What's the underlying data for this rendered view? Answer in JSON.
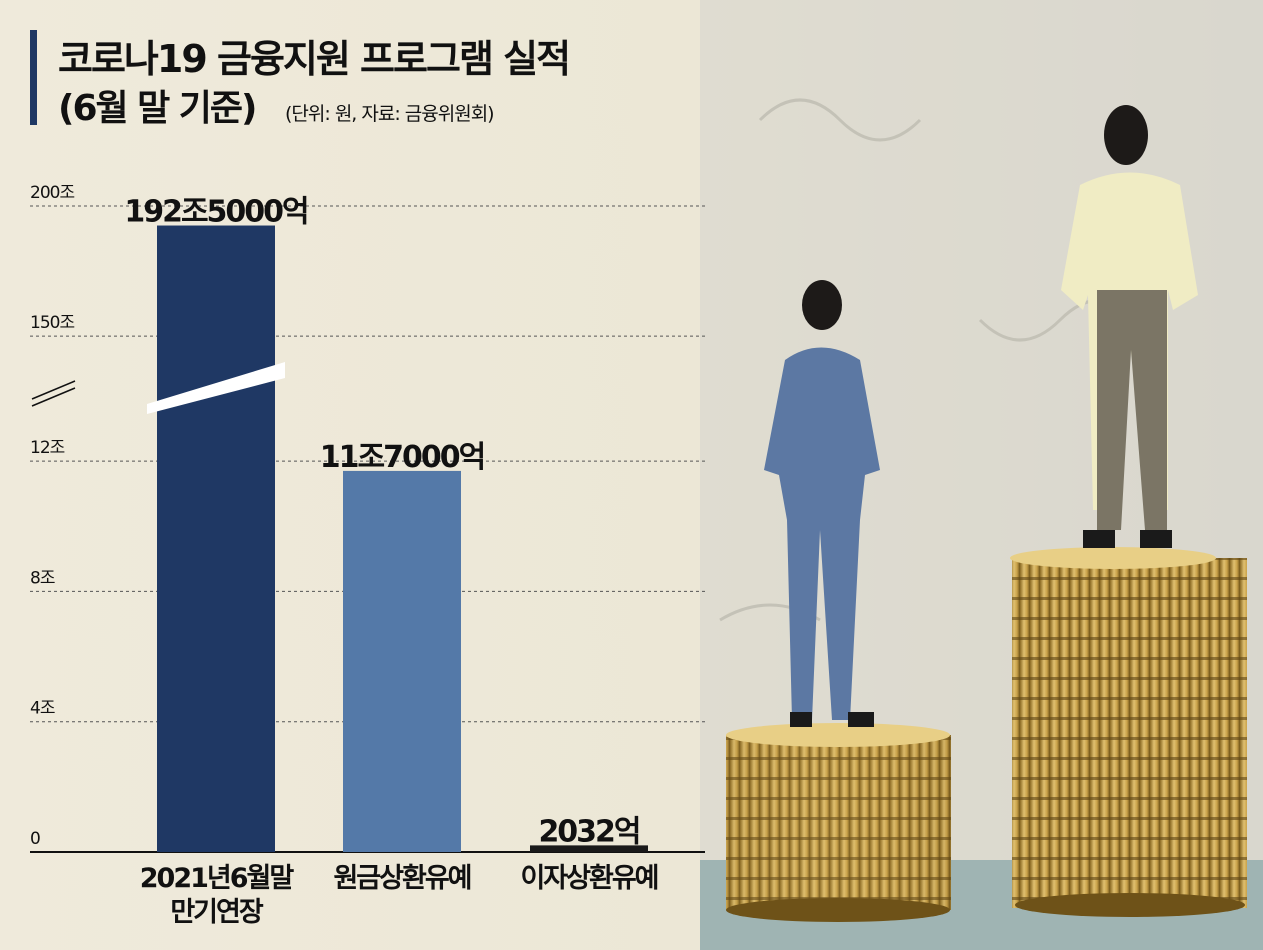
{
  "chart_data": {
    "type": "bar",
    "title": "코로나19 금융지원 프로그램 실적",
    "subtitle": "(6월 말 기준)",
    "note": "(단위: 원, 자료: 금융위원회)",
    "categories": [
      "2021년6월말\n만기연장",
      "원금상환유예",
      "이자상환유예"
    ],
    "values": [
      192.5,
      11.7,
      0.2032
    ],
    "value_labels": [
      "192조5000억",
      "11조7000억",
      "2032억"
    ],
    "colors": [
      "#1f3864",
      "#5479a8",
      "#1a1a1a"
    ],
    "ylim": [
      0,
      200
    ],
    "ybreak": [
      14,
      127
    ],
    "yticks": [
      0,
      {
        "value": 4,
        "label": "4조"
      },
      {
        "value": 8,
        "label": "8조"
      },
      {
        "value": 12,
        "label": "12조"
      },
      {
        "value": 150,
        "label": "150조"
      },
      {
        "value": 200,
        "label": "200조"
      }
    ],
    "grid": true
  }
}
